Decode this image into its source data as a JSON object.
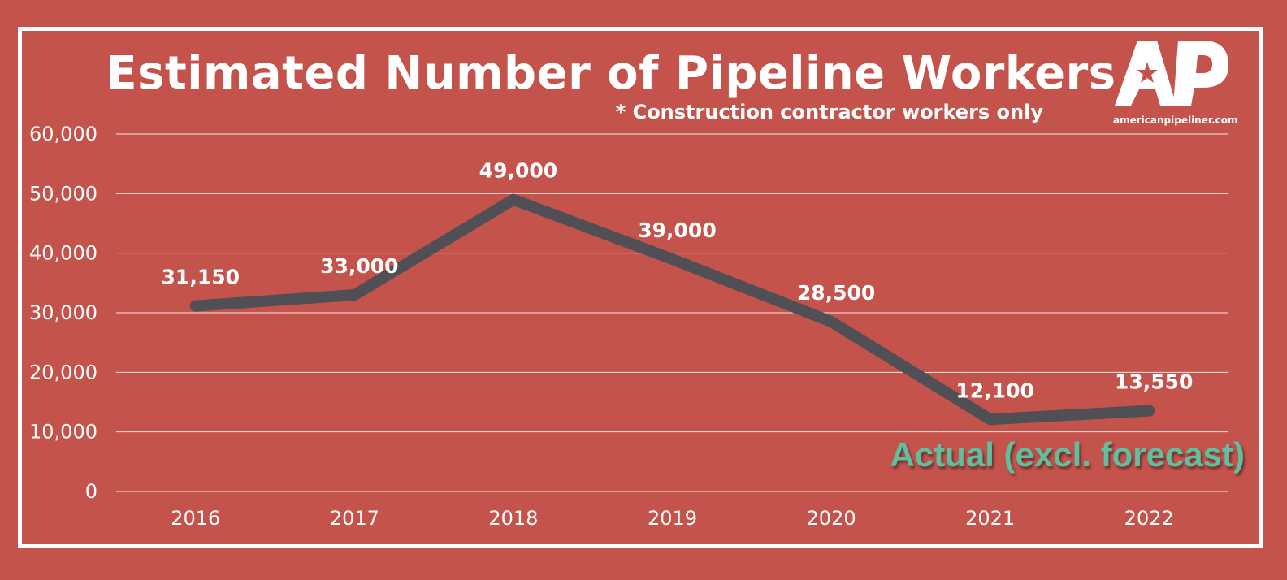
{
  "logo": {
    "letters": "AP",
    "url": "americanpipeliner.com"
  },
  "chart_data": {
    "type": "line",
    "title": "Estimated Number of Pipeline Workers",
    "subtitle": "* Construction contractor workers only",
    "annotation": "Actual (excl. forecast)",
    "categories": [
      "2016",
      "2017",
      "2018",
      "2019",
      "2020",
      "2021",
      "2022"
    ],
    "series": [
      {
        "values": [
          31150,
          33000,
          49000,
          39000,
          28500,
          12100,
          13550
        ],
        "labels": [
          "31,150",
          "33,000",
          "49,000",
          "39,000",
          "28,500",
          "12,100",
          "13,550"
        ]
      }
    ],
    "y_ticks": [
      "0",
      "10,000",
      "20,000",
      "30,000",
      "40,000",
      "50,000",
      "60,000"
    ],
    "ylim": [
      0,
      60000
    ],
    "grid": true,
    "legend": "none",
    "colors": {
      "background": "#c4534c",
      "line": "#4f4f55",
      "text": "#ffffff",
      "annotation": "#5fbf9f",
      "grid": "#ffffff"
    }
  }
}
